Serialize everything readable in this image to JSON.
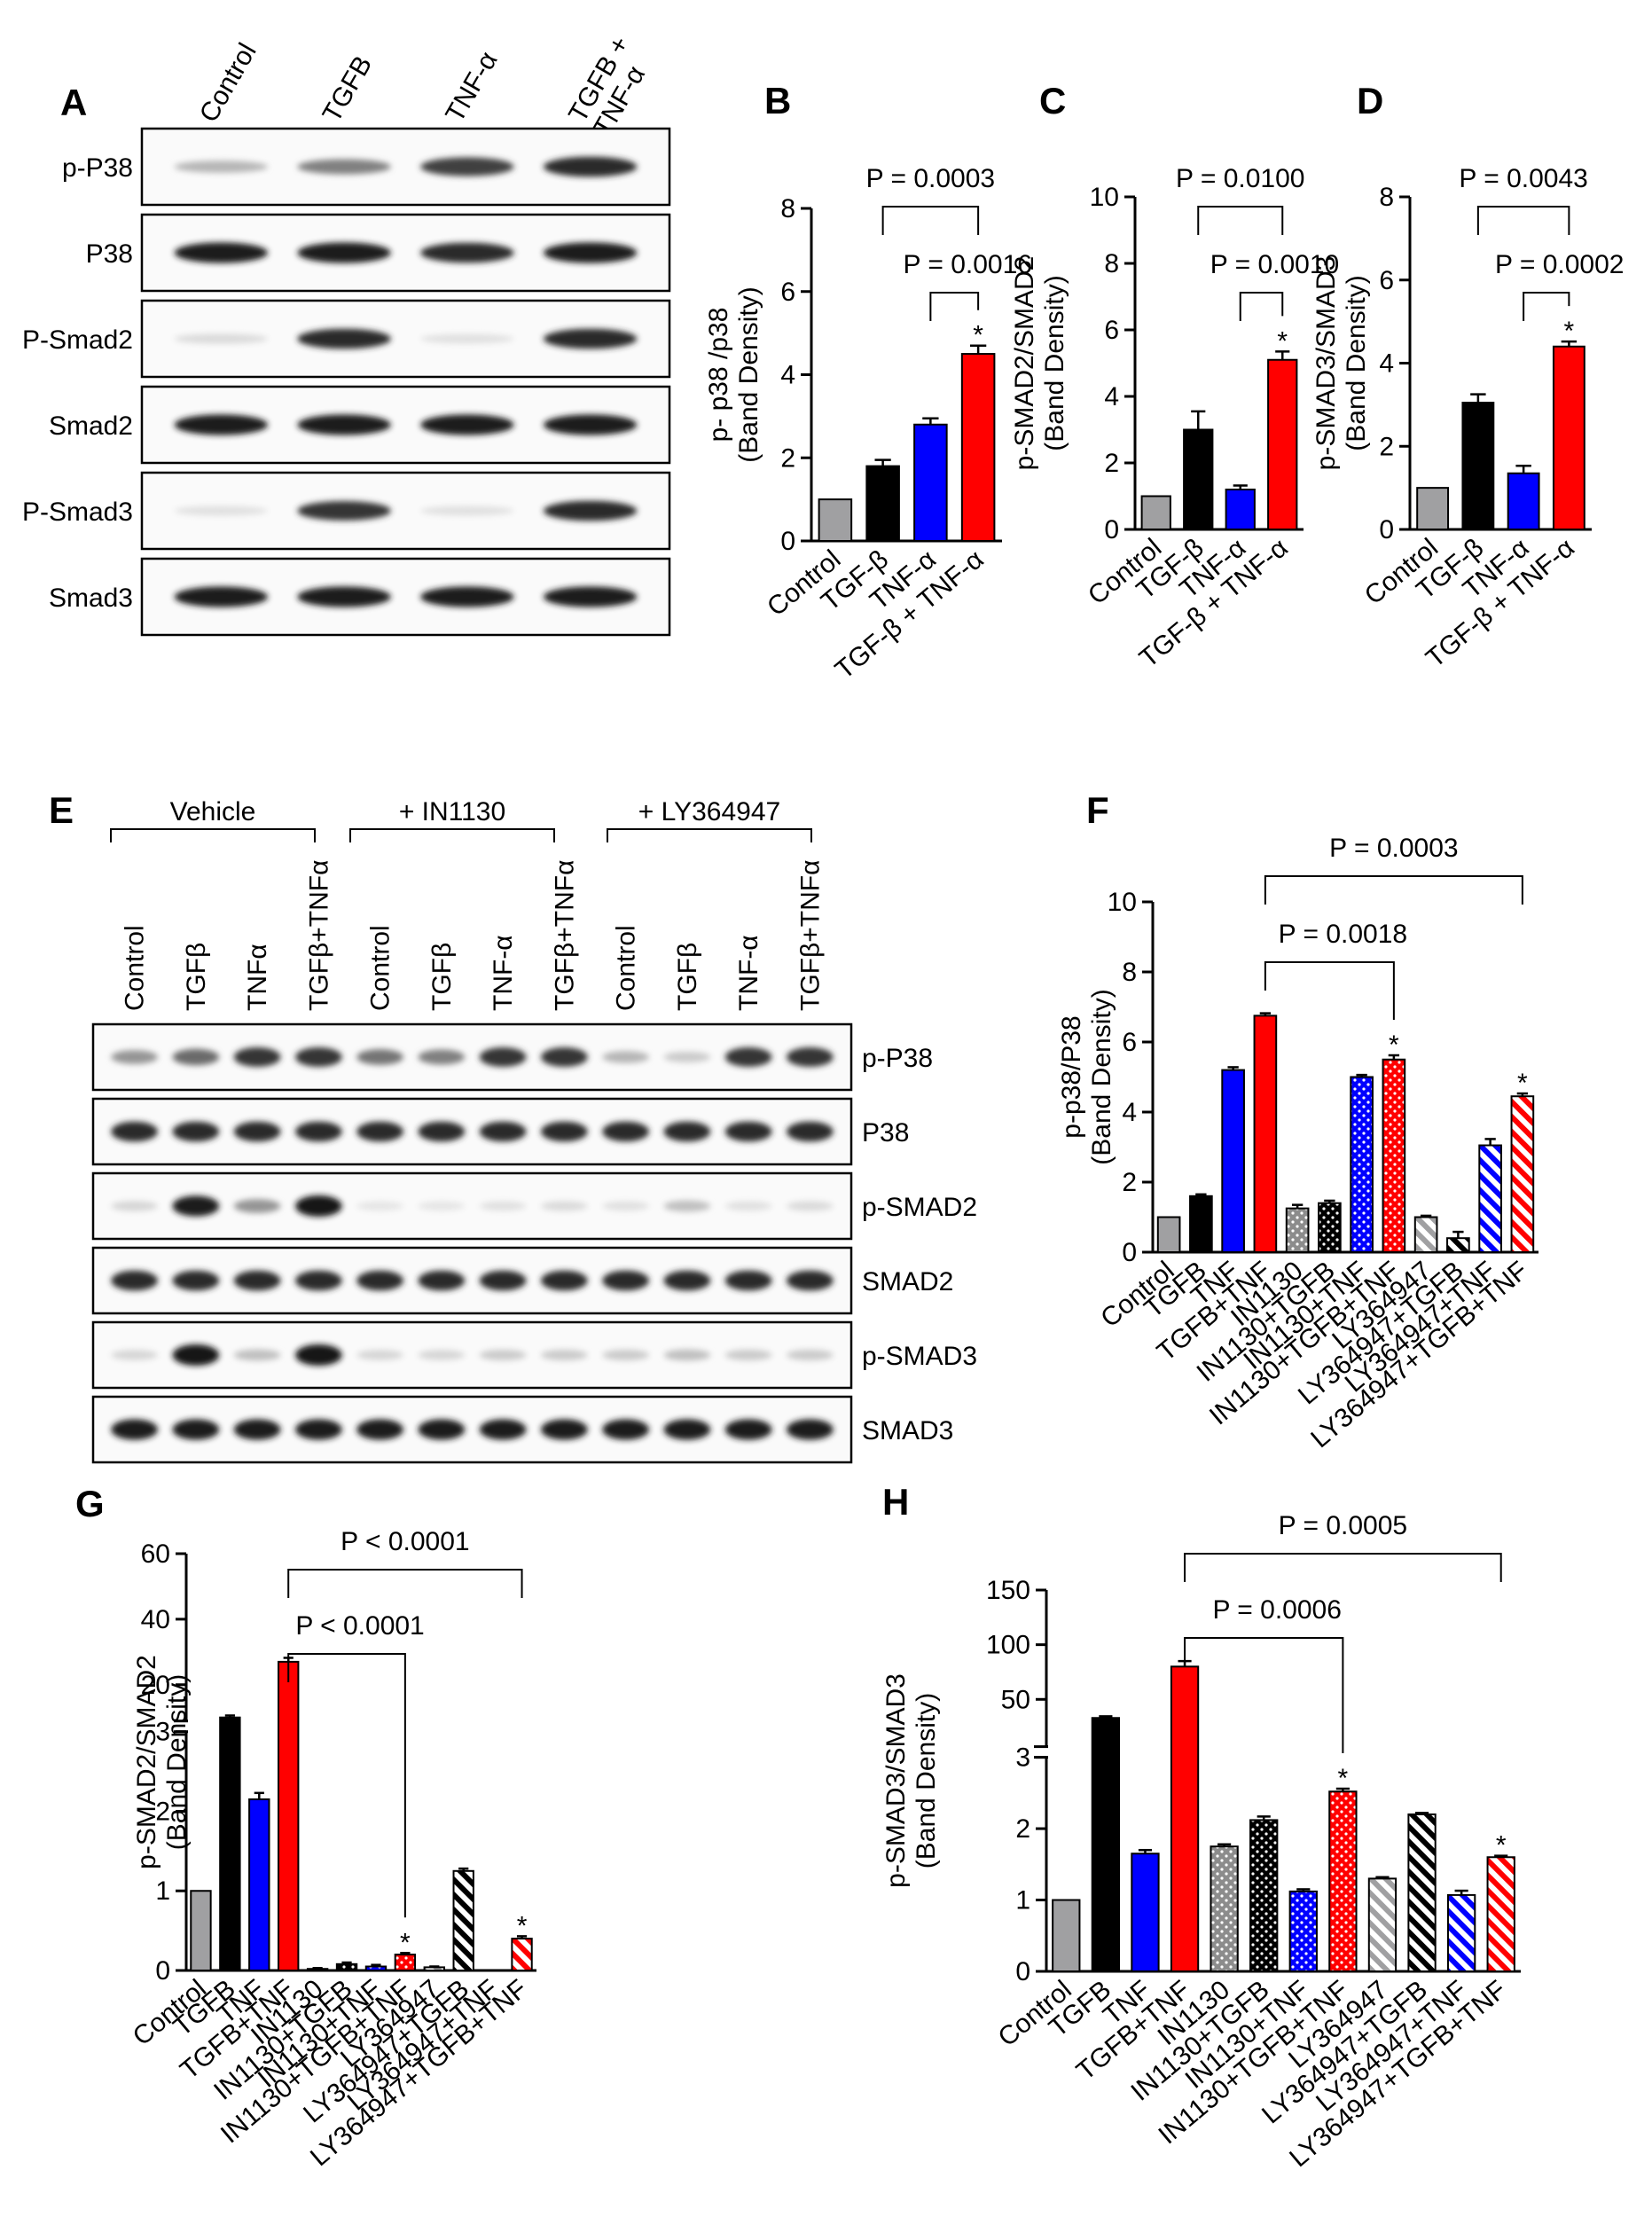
{
  "colors": {
    "grey": "#a0a0a2",
    "black": "#000000",
    "blue": "#0000ff",
    "red": "#ff0000"
  },
  "panelA": {
    "letter": "A",
    "lanes": [
      "Control",
      "TGFB",
      "TNF-α",
      "TGFB +\nTNF-α"
    ],
    "blots": [
      {
        "label": "p-P38",
        "bands": [
          0.25,
          0.5,
          0.8,
          0.9
        ]
      },
      {
        "label": "P38",
        "bands": [
          0.95,
          0.95,
          0.9,
          0.95
        ]
      },
      {
        "label": "P-Smad2",
        "bands": [
          0.08,
          0.9,
          0.05,
          0.9
        ]
      },
      {
        "label": "Smad2",
        "bands": [
          0.95,
          0.95,
          0.95,
          0.95
        ]
      },
      {
        "label": "P-Smad3",
        "bands": [
          0.05,
          0.85,
          0.05,
          0.9
        ]
      },
      {
        "label": "Smad3",
        "bands": [
          0.95,
          0.95,
          0.95,
          0.95
        ]
      }
    ]
  },
  "panelE": {
    "letter": "E",
    "groups": [
      "Vehicle",
      "+ IN1130",
      "+ LY364947"
    ],
    "lanes": [
      "Control",
      "TGFβ",
      "TNFα",
      "TGFβ+TNFα",
      "Control",
      "TGFβ",
      "TNF-α",
      "TGFβ+TNFα",
      "Control",
      "TGFβ",
      "TNF-α",
      "TGFβ+TNFα"
    ],
    "blots": [
      {
        "label": "p-P38",
        "bands": [
          0.4,
          0.6,
          0.85,
          0.85,
          0.55,
          0.5,
          0.85,
          0.85,
          0.25,
          0.15,
          0.85,
          0.85
        ]
      },
      {
        "label": "P38",
        "bands": [
          0.9,
          0.9,
          0.9,
          0.9,
          0.9,
          0.9,
          0.9,
          0.9,
          0.9,
          0.9,
          0.9,
          0.9
        ]
      },
      {
        "label": "p-SMAD2",
        "bands": [
          0.1,
          0.95,
          0.4,
          1.0,
          0.03,
          0.03,
          0.05,
          0.08,
          0.05,
          0.2,
          0.05,
          0.08
        ]
      },
      {
        "label": "SMAD2",
        "bands": [
          0.9,
          0.9,
          0.9,
          0.9,
          0.9,
          0.9,
          0.9,
          0.9,
          0.9,
          0.9,
          0.9,
          0.9
        ]
      },
      {
        "label": "p-SMAD3",
        "bands": [
          0.1,
          1.0,
          0.2,
          1.0,
          0.1,
          0.1,
          0.15,
          0.15,
          0.15,
          0.2,
          0.15,
          0.15
        ]
      },
      {
        "label": "SMAD3",
        "bands": [
          0.95,
          0.95,
          0.95,
          0.95,
          0.95,
          0.95,
          0.95,
          0.95,
          0.95,
          0.95,
          0.95,
          0.95
        ]
      }
    ]
  },
  "chart_data": [
    {
      "id": "B",
      "type": "bar",
      "title": "",
      "ylabel": "p- p38 /p38\n(Band Density)",
      "ylim": [
        0,
        8
      ],
      "yticks": [
        0,
        2,
        4,
        6,
        8
      ],
      "categories": [
        "Control",
        "TGF-β",
        "TNF-α",
        "TGF-β + TNF-α"
      ],
      "values": [
        1.0,
        1.8,
        2.8,
        4.5
      ],
      "errors": [
        0,
        0.15,
        0.15,
        0.2
      ],
      "colors": [
        "grey",
        "black",
        "blue",
        "red"
      ],
      "stars": [
        3
      ],
      "pvalues": [
        {
          "text": "P = 0.0003",
          "from": 1,
          "to": 3
        },
        {
          "text": "P = 0.0016",
          "from": 2,
          "to": 3
        }
      ]
    },
    {
      "id": "C",
      "type": "bar",
      "title": "",
      "ylabel": "p-SMAD2/SMAD2\n(Band Density)",
      "ylim": [
        0,
        10
      ],
      "yticks": [
        0,
        2,
        4,
        6,
        8,
        10
      ],
      "categories": [
        "Control",
        "TGF-β",
        "TNF-α",
        "TGF-β + TNF-α"
      ],
      "values": [
        1.0,
        3.0,
        1.2,
        5.1
      ],
      "errors": [
        0,
        0.55,
        0.12,
        0.25
      ],
      "colors": [
        "grey",
        "black",
        "blue",
        "red"
      ],
      "stars": [
        3
      ],
      "pvalues": [
        {
          "text": "P = 0.0100",
          "from": 1,
          "to": 3
        },
        {
          "text": "P = 0.0010",
          "from": 2,
          "to": 3
        }
      ]
    },
    {
      "id": "D",
      "type": "bar",
      "title": "",
      "ylabel": "p-SMAD3/SMAD3\n(Band Density)",
      "ylim": [
        0,
        8
      ],
      "yticks": [
        0,
        2,
        4,
        6,
        8
      ],
      "categories": [
        "Control",
        "TGF-β",
        "TNF-α",
        "TGF-β + TNF-α"
      ],
      "values": [
        1.0,
        3.05,
        1.35,
        4.4
      ],
      "errors": [
        0,
        0.2,
        0.18,
        0.12
      ],
      "colors": [
        "grey",
        "black",
        "blue",
        "red"
      ],
      "stars": [
        3
      ],
      "pvalues": [
        {
          "text": "P = 0.0043",
          "from": 1,
          "to": 3
        },
        {
          "text": "P = 0.0002",
          "from": 2,
          "to": 3
        }
      ]
    },
    {
      "id": "F",
      "type": "bar",
      "title": "",
      "ylabel": "p-p38/P38\n(Band Density)",
      "ylim": [
        0,
        10
      ],
      "yticks": [
        0,
        2,
        4,
        6,
        8,
        10
      ],
      "categories": [
        "Control",
        "TGFB",
        "TNF",
        "TGFB+TNF",
        "IN1130",
        "IN1130+TGFB",
        "IN1130+TNF",
        "IN1130+TGFB+TNF",
        "LY364947",
        "LY364947+TGFB",
        "LY364947+TNF",
        "LY364947+TGFB+TNF"
      ],
      "values": [
        1.0,
        1.6,
        5.2,
        6.75,
        1.25,
        1.4,
        5.0,
        5.5,
        1.0,
        0.4,
        3.05,
        4.45
      ],
      "errors": [
        0,
        0.05,
        0.08,
        0.07,
        0.1,
        0.07,
        0.06,
        0.12,
        0.04,
        0.18,
        0.18,
        0.08
      ],
      "colors": [
        "grey",
        "black",
        "blue",
        "red",
        "grey",
        "black",
        "blue",
        "red",
        "grey",
        "black",
        "blue",
        "red"
      ],
      "patterns": [
        "solid",
        "solid",
        "solid",
        "solid",
        "dots",
        "dots",
        "dots",
        "dots",
        "hatch",
        "hatch",
        "hatch",
        "hatch"
      ],
      "stars": [
        7,
        11
      ],
      "pvalues": [
        {
          "text": "P = 0.0003",
          "from": 3,
          "to": 11
        },
        {
          "text": "P = 0.0018",
          "from": 3,
          "to": 7
        }
      ]
    },
    {
      "id": "G",
      "type": "bar",
      "title": "",
      "ylabel": "p-SMAD2/SMAD2\n(Band Density)",
      "ylim": [
        0,
        60
      ],
      "ybreak": [
        3,
        10
      ],
      "yticks_lower": [
        0,
        1,
        2,
        3
      ],
      "yticks_upper": [
        20,
        40,
        60
      ],
      "categories": [
        "Control",
        "TGFB",
        "TNF",
        "TGFB+TNF",
        "IN1130",
        "IN1130+TGFB",
        "IN1130+TNF",
        "IN1130+TGFB+TNF",
        "LY364947",
        "LY364947+TGFB",
        "LY364947+TNF",
        "LY364947+TGFB+TNF"
      ],
      "values": [
        1.0,
        10.0,
        2.15,
        27.0,
        0.02,
        0.08,
        0.05,
        0.2,
        0.04,
        1.25,
        0.0,
        0.4
      ],
      "errors": [
        0,
        0.6,
        0.08,
        1.2,
        0.01,
        0.02,
        0.02,
        0.02,
        0.01,
        0.03,
        0,
        0.03
      ],
      "colors": [
        "grey",
        "black",
        "blue",
        "red",
        "grey",
        "black",
        "blue",
        "red",
        "grey",
        "black",
        "blue",
        "red"
      ],
      "patterns": [
        "solid",
        "solid",
        "solid",
        "solid",
        "dots",
        "dots",
        "dots",
        "dots",
        "hatch",
        "hatch",
        "hatch",
        "hatch"
      ],
      "stars": [
        7,
        11
      ],
      "pvalues": [
        {
          "text": "P < 0.0001",
          "from": 3,
          "to": 11
        },
        {
          "text": "P < 0.0001",
          "from": 3,
          "to": 7
        }
      ]
    },
    {
      "id": "H",
      "type": "bar",
      "title": "",
      "ylabel": "p-SMAD3/SMAD3\n(Band Density)",
      "ylim": [
        0,
        150
      ],
      "ybreak": [
        3,
        10
      ],
      "yticks_lower": [
        0,
        1,
        2,
        3
      ],
      "yticks_upper": [
        50,
        100,
        150
      ],
      "categories": [
        "Control",
        "TGFB",
        "TNF",
        "TGFB+TNF",
        "IN1130",
        "IN1130+TGFB",
        "IN1130+TNF",
        "IN1130+TGFB+TNF",
        "LY364947",
        "LY364947+TGFB",
        "LY364947+TNF",
        "LY364947+TGFB+TNF"
      ],
      "values": [
        1.0,
        33.0,
        1.65,
        80.0,
        1.75,
        2.12,
        1.12,
        2.52,
        1.3,
        2.2,
        1.07,
        1.6
      ],
      "errors": [
        0,
        1.5,
        0.05,
        5.0,
        0.03,
        0.05,
        0.03,
        0.04,
        0.02,
        0.02,
        0.06,
        0.02
      ],
      "colors": [
        "grey",
        "black",
        "blue",
        "red",
        "grey",
        "black",
        "blue",
        "red",
        "grey",
        "black",
        "blue",
        "red"
      ],
      "patterns": [
        "solid",
        "solid",
        "solid",
        "solid",
        "dots",
        "dots",
        "dots",
        "dots",
        "hatch",
        "hatch",
        "hatch",
        "hatch"
      ],
      "stars": [
        7,
        11
      ],
      "pvalues": [
        {
          "text": "P = 0.0005",
          "from": 3,
          "to": 11
        },
        {
          "text": "P = 0.0006",
          "from": 3,
          "to": 7
        }
      ]
    }
  ]
}
